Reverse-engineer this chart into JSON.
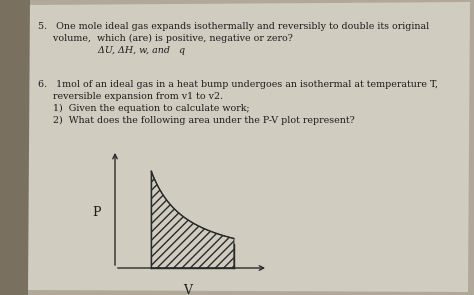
{
  "background_color": "#b0a898",
  "page_color_left": "#d4cfc5",
  "page_color_right": "#ccc7bc",
  "question5_lines": [
    "5.   One mole ideal gas expands isothermally and reversibly to double its original",
    "     volume,  which (are) is positive, negative or zero?",
    "                    ΔU, ΔH, w, and   q"
  ],
  "question6_lines": [
    "6.   1mol of an ideal gas in a heat bump undergoes an isothermal at temperature T,",
    "     reversible expansion from v1 to v2.",
    "     1)  Given the equation to calculate work;",
    "     2)  What does the following area under the P-V plot represent?"
  ],
  "axis_label_P": "P",
  "axis_label_V": "V",
  "text_fontsize": 6.8,
  "text_color": "#1c1c1c",
  "curve_color": "#2a2a2a",
  "hatch_color": "#2a2a2a",
  "v1": 0.25,
  "v2": 0.82,
  "p_at_v1": 0.88,
  "p_at_v2": 0.22
}
